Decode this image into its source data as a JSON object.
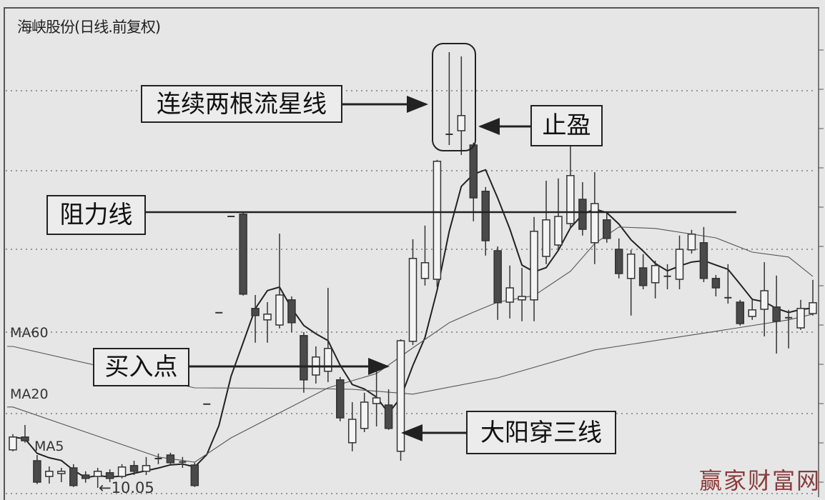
{
  "chart_data": {
    "type": "candlestick",
    "title": "海峡股份(日线.前复权)",
    "ylim": [
      9.725,
      27.125
    ],
    "grid": true,
    "candle_fields": [
      "open",
      "high",
      "low",
      "close"
    ],
    "candles": [
      [
        11.38,
        11.93,
        11.33,
        11.83
      ],
      [
        11.83,
        12.25,
        11.63,
        11.7
      ],
      [
        11.0,
        11.2,
        10.18,
        10.25
      ],
      [
        10.45,
        10.8,
        10.2,
        10.63
      ],
      [
        10.55,
        10.75,
        10.25,
        10.63
      ],
      [
        10.75,
        10.88,
        10.08,
        10.13
      ],
      [
        10.5,
        10.63,
        10.23,
        10.38
      ],
      [
        10.45,
        10.75,
        10.05,
        10.63
      ],
      [
        10.58,
        10.7,
        10.25,
        10.38
      ],
      [
        10.45,
        10.88,
        10.38,
        10.78
      ],
      [
        10.83,
        11.0,
        10.5,
        10.63
      ],
      [
        10.63,
        11.13,
        10.5,
        10.83
      ],
      [
        11.05,
        11.25,
        10.88,
        11.1
      ],
      [
        11.2,
        11.28,
        10.88,
        10.93
      ],
      [
        10.98,
        11.13,
        10.75,
        10.93
      ],
      [
        10.85,
        10.93,
        10.08,
        10.13
      ],
      [
        12.98,
        12.98,
        12.98,
        12.98
      ],
      [
        16.18,
        16.18,
        16.18,
        16.18
      ],
      [
        19.55,
        19.55,
        19.55,
        19.55
      ],
      [
        19.63,
        19.7,
        16.78,
        16.83
      ],
      [
        16.33,
        16.8,
        15.13,
        16.08
      ],
      [
        15.93,
        16.55,
        15.13,
        16.13
      ],
      [
        15.75,
        18.95,
        15.63,
        16.8
      ],
      [
        16.63,
        16.75,
        15.5,
        15.83
      ],
      [
        15.38,
        15.5,
        13.38,
        13.83
      ],
      [
        14.0,
        15.0,
        13.7,
        14.63
      ],
      [
        14.13,
        17.05,
        13.75,
        14.93
      ],
      [
        13.83,
        13.93,
        12.38,
        12.5
      ],
      [
        11.63,
        13.05,
        11.33,
        12.45
      ],
      [
        12.13,
        13.38,
        12.0,
        13.05
      ],
      [
        13.0,
        14.13,
        12.2,
        13.2
      ],
      [
        12.95,
        13.5,
        12.08,
        12.13
      ],
      [
        11.33,
        15.25,
        11.0,
        15.2
      ],
      [
        15.18,
        18.75,
        15.05,
        18.08
      ],
      [
        17.38,
        19.23,
        17.13,
        17.93
      ],
      [
        17.35,
        21.53,
        17.08,
        21.48
      ],
      [
        22.4,
        25.3,
        22.05,
        22.45
      ],
      [
        22.55,
        25.15,
        21.7,
        23.08
      ],
      [
        22.05,
        22.13,
        19.38,
        20.2
      ],
      [
        20.43,
        20.58,
        18.18,
        18.7
      ],
      [
        18.35,
        18.5,
        15.93,
        16.53
      ],
      [
        16.55,
        17.83,
        15.98,
        17.05
      ],
      [
        16.63,
        17.75,
        15.88,
        16.75
      ],
      [
        16.63,
        19.53,
        15.88,
        19.03
      ],
      [
        18.15,
        20.8,
        17.88,
        19.43
      ],
      [
        18.55,
        20.88,
        18.38,
        19.55
      ],
      [
        19.3,
        22.03,
        19.13,
        20.98
      ],
      [
        20.15,
        20.75,
        18.88,
        19.1
      ],
      [
        18.63,
        21.1,
        17.88,
        20.0
      ],
      [
        19.43,
        19.73,
        18.63,
        18.78
      ],
      [
        18.4,
        18.78,
        17.38,
        17.55
      ],
      [
        17.38,
        18.38,
        16.08,
        18.23
      ],
      [
        17.75,
        18.23,
        17.0,
        17.13
      ],
      [
        17.23,
        18.0,
        16.68,
        17.83
      ],
      [
        17.43,
        17.88,
        17.0,
        17.48
      ],
      [
        17.35,
        18.88,
        17.0,
        18.4
      ],
      [
        18.38,
        19.08,
        18.25,
        18.93
      ],
      [
        18.63,
        19.18,
        17.25,
        17.38
      ],
      [
        17.38,
        17.5,
        16.75,
        17.05
      ],
      [
        16.68,
        17.88,
        16.5,
        16.73
      ],
      [
        16.55,
        16.63,
        15.73,
        15.8
      ],
      [
        16.05,
        16.68,
        15.93,
        16.28
      ],
      [
        16.3,
        17.95,
        15.35,
        16.95
      ],
      [
        16.38,
        17.48,
        14.75,
        15.88
      ],
      [
        15.98,
        16.28,
        14.93,
        16.03
      ],
      [
        15.65,
        16.63,
        15.58,
        16.33
      ],
      [
        16.15,
        17.33,
        16.08,
        16.53
      ]
    ],
    "series": [
      {
        "name": "MA5",
        "period": 5
      },
      {
        "name": "MA20",
        "points": [
          [
            1,
            12.88
          ],
          [
            13,
            11.13
          ],
          [
            16,
            10.95
          ],
          [
            19,
            11.8
          ],
          [
            27,
            13.55
          ],
          [
            31,
            14.05
          ],
          [
            34,
            14.95
          ],
          [
            37,
            15.83
          ],
          [
            39,
            16.2
          ],
          [
            41,
            16.55
          ],
          [
            44,
            16.78
          ],
          [
            47,
            17.63
          ],
          [
            49,
            18.6
          ],
          [
            51,
            19.18
          ],
          [
            54,
            19.13
          ],
          [
            59,
            18.8
          ],
          [
            62,
            18.3
          ],
          [
            65,
            18.13
          ],
          [
            67,
            17.45
          ]
        ]
      },
      {
        "name": "MA60",
        "points": [
          [
            1,
            15.0
          ],
          [
            16,
            13.55
          ],
          [
            25,
            13.53
          ],
          [
            29,
            13.5
          ],
          [
            34,
            13.33
          ],
          [
            41,
            13.9
          ],
          [
            49,
            14.88
          ],
          [
            59,
            15.53
          ],
          [
            65,
            15.93
          ],
          [
            67,
            16.13
          ]
        ]
      }
    ],
    "resistance_level": 19.7,
    "low_label": "←10.05",
    "annotations": {
      "shooting_stars": "连续两根流星线",
      "take_profit": "止盈",
      "resistance": "阻力线",
      "buy_point": "买入点",
      "big_yang": "大阳穿三线"
    },
    "colors": {
      "background": "#e6e6e6",
      "down_candle": "#4a4a4a",
      "up_candle_fill": "#f4f4f4",
      "line": "#222222",
      "thin_line": "#555555"
    }
  },
  "labels": {
    "ma60": "MA60",
    "ma20": "MA20",
    "ma5": "MA5"
  },
  "watermark": "赢家财富网"
}
